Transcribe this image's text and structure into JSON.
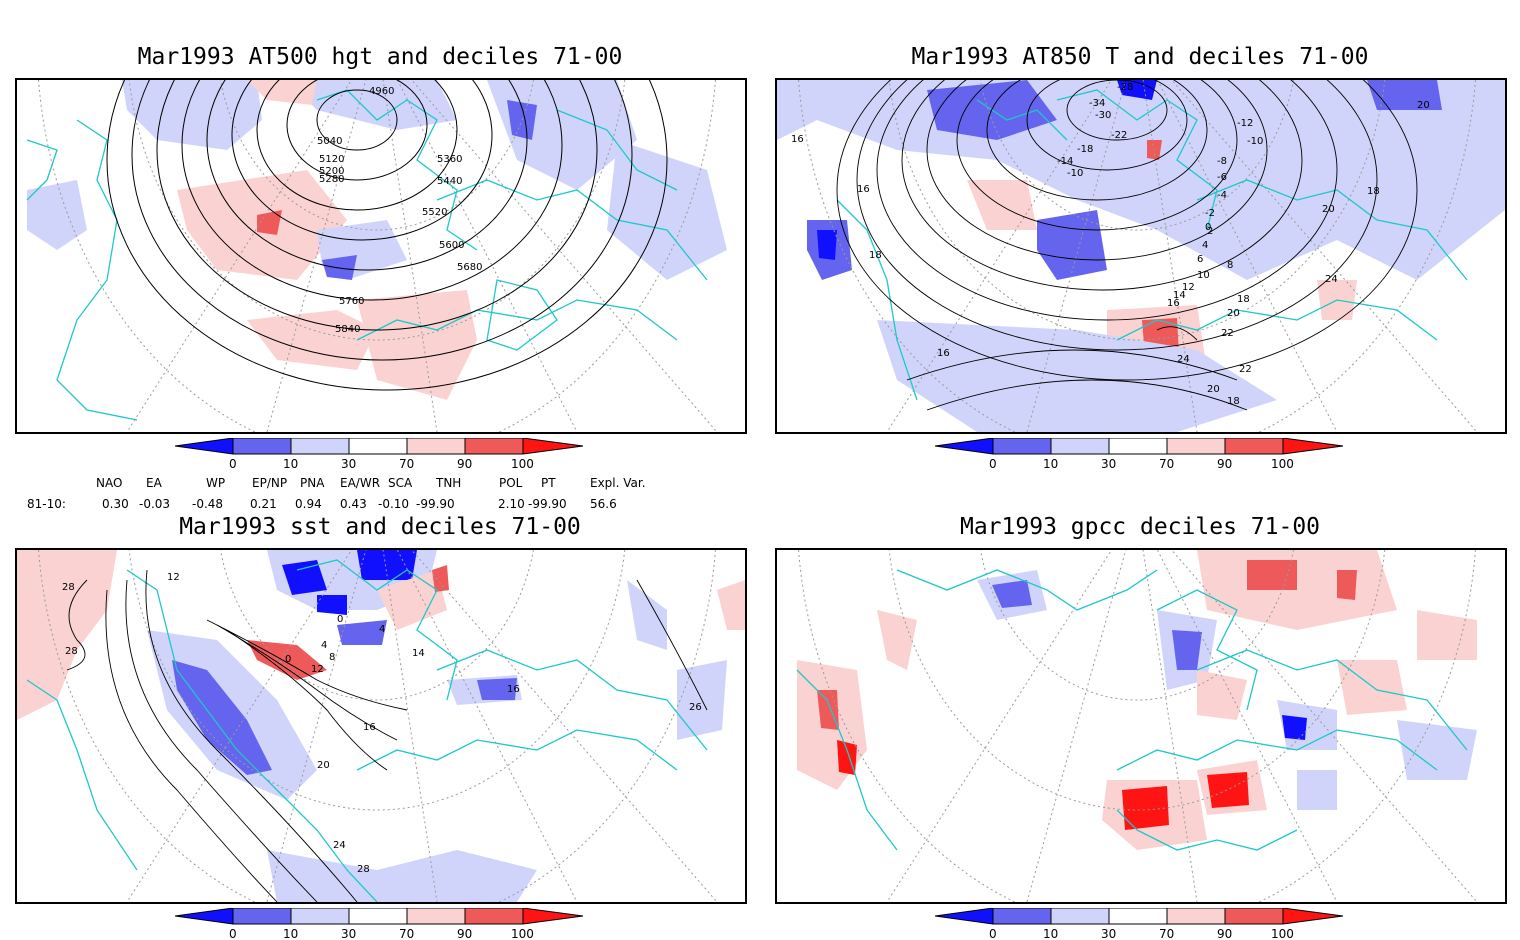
{
  "panels": [
    {
      "id": "p1",
      "title": "Mar1993 AT500 hgt and deciles 71-00",
      "contour_labels": [
        "4960",
        "5040",
        "5120",
        "5200",
        "5280",
        "5360",
        "5440",
        "5520",
        "5600",
        "5680",
        "5760",
        "5840"
      ]
    },
    {
      "id": "p2",
      "title": "Mar1993 AT850 T and deciles 71-00",
      "contour_labels": [
        "-28",
        "-34",
        "-30",
        "-22",
        "-18",
        "-14",
        "-10",
        "-12",
        "-10",
        "-8",
        "-6",
        "-4",
        "-2",
        "0",
        "2",
        "4",
        "6",
        "8",
        "10",
        "12",
        "14",
        "16",
        "18",
        "20",
        "22",
        "24",
        "22",
        "20",
        "18",
        "16",
        "16",
        "16",
        "18",
        "18",
        "20",
        "24",
        "20"
      ]
    },
    {
      "id": "p3",
      "title": "Mar1993 sst and deciles 71-00",
      "contour_labels": [
        "28",
        "28",
        "12",
        "0",
        "4",
        "8",
        "12",
        "16",
        "20",
        "24",
        "28",
        "26",
        "0",
        "4",
        "14",
        "16"
      ]
    },
    {
      "id": "p4",
      "title": "Mar1993 gpcc deciles 71-00",
      "contour_labels": []
    }
  ],
  "colorbar": {
    "tick_labels": [
      "0",
      "10",
      "30",
      "70",
      "90",
      "100"
    ],
    "colors": {
      "strong_blue": "#1010ff",
      "mid_blue": "#6464ee",
      "light_blue": "#d0d4fa",
      "white": "#ffffff",
      "light_red": "#fad2d2",
      "mid_red": "#ee5a5a",
      "strong_red": "#ff1414"
    }
  },
  "indices": {
    "headers": [
      "NAO",
      "EA",
      "WP",
      "EP/NP",
      "PNA",
      "EA/WR",
      "SCA",
      "TNH",
      "POL",
      "PT",
      "Expl. Var."
    ],
    "row_label": "81-10:",
    "values": [
      "0.30",
      "-0.03",
      "-0.48",
      "0.21",
      "0.94",
      "0.43",
      "-0.10",
      "-99.90",
      "2.10",
      "-99.90",
      "56.6"
    ]
  },
  "colors": {
    "coastline": "#1ec8c8",
    "contour": "#000000",
    "graticule": "#9a9a9a"
  }
}
